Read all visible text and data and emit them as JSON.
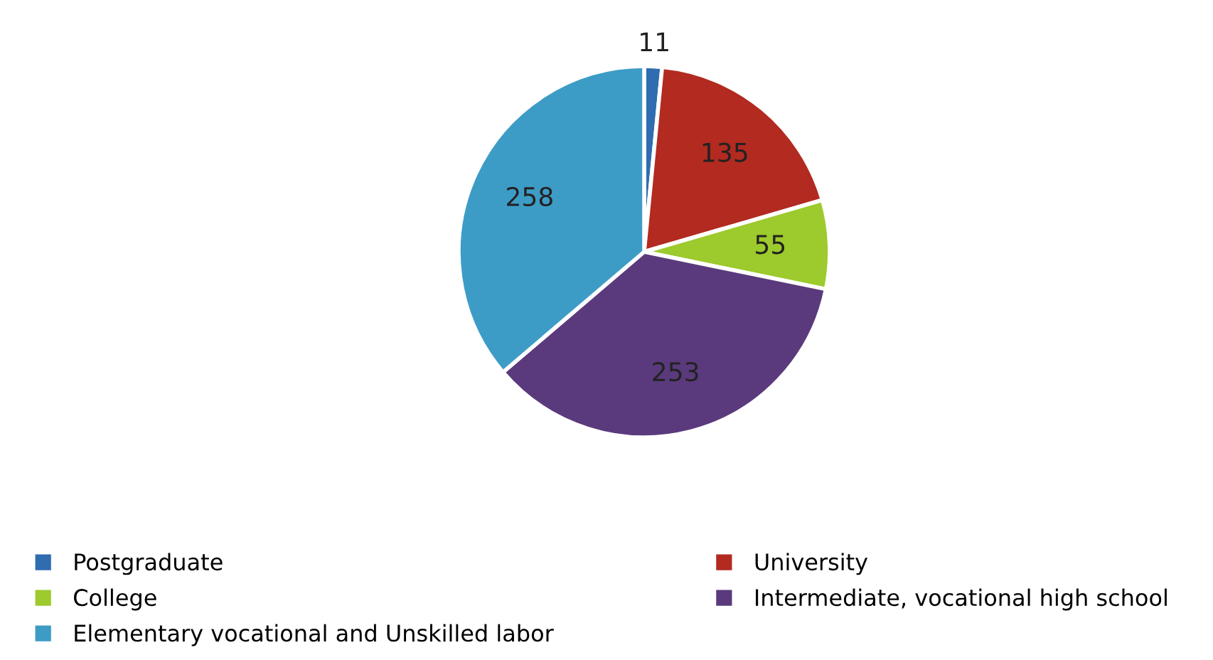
{
  "chart_data": {
    "type": "pie",
    "categories": [
      "Postgraduate",
      "University",
      "College",
      "Intermediate, vocational high school",
      "Elementary vocational and Unskilled labor"
    ],
    "values": [
      11,
      135,
      55,
      253,
      258
    ],
    "colors": [
      "#2f6db0",
      "#b22a20",
      "#9dca2c",
      "#5a3a7c",
      "#3d9cc6"
    ],
    "data_labels": true,
    "legend": "bottom"
  }
}
